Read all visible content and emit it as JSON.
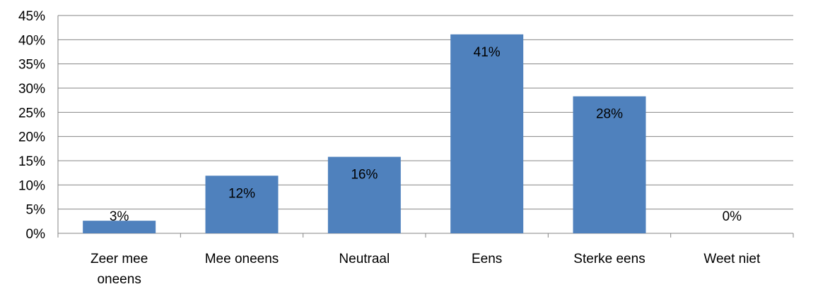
{
  "chart_data": {
    "type": "bar",
    "categories": [
      [
        "Zeer mee",
        "oneens"
      ],
      [
        "Mee oneens"
      ],
      [
        "Neutraal"
      ],
      [
        "Eens"
      ],
      [
        "Sterke eens"
      ],
      [
        "Weet niet"
      ]
    ],
    "values": [
      0.026,
      0.119,
      0.158,
      0.411,
      0.283,
      0.0
    ],
    "data_labels": [
      "3%",
      "12%",
      "16%",
      "41%",
      "28%",
      "0%"
    ],
    "ylim": [
      0,
      0.45
    ],
    "yticks": [
      0,
      0.05,
      0.1,
      0.15,
      0.2,
      0.25,
      0.3,
      0.35,
      0.4,
      0.45
    ],
    "ytick_labels": [
      "0%",
      "5%",
      "10%",
      "15%",
      "20%",
      "25%",
      "30%",
      "35%",
      "40%",
      "45%"
    ],
    "title": "",
    "xlabel": "",
    "ylabel": "",
    "grid": true,
    "legend": "none",
    "colors": {
      "bar": "#4f81bd",
      "grid": "#868686",
      "text": "#000000"
    }
  }
}
